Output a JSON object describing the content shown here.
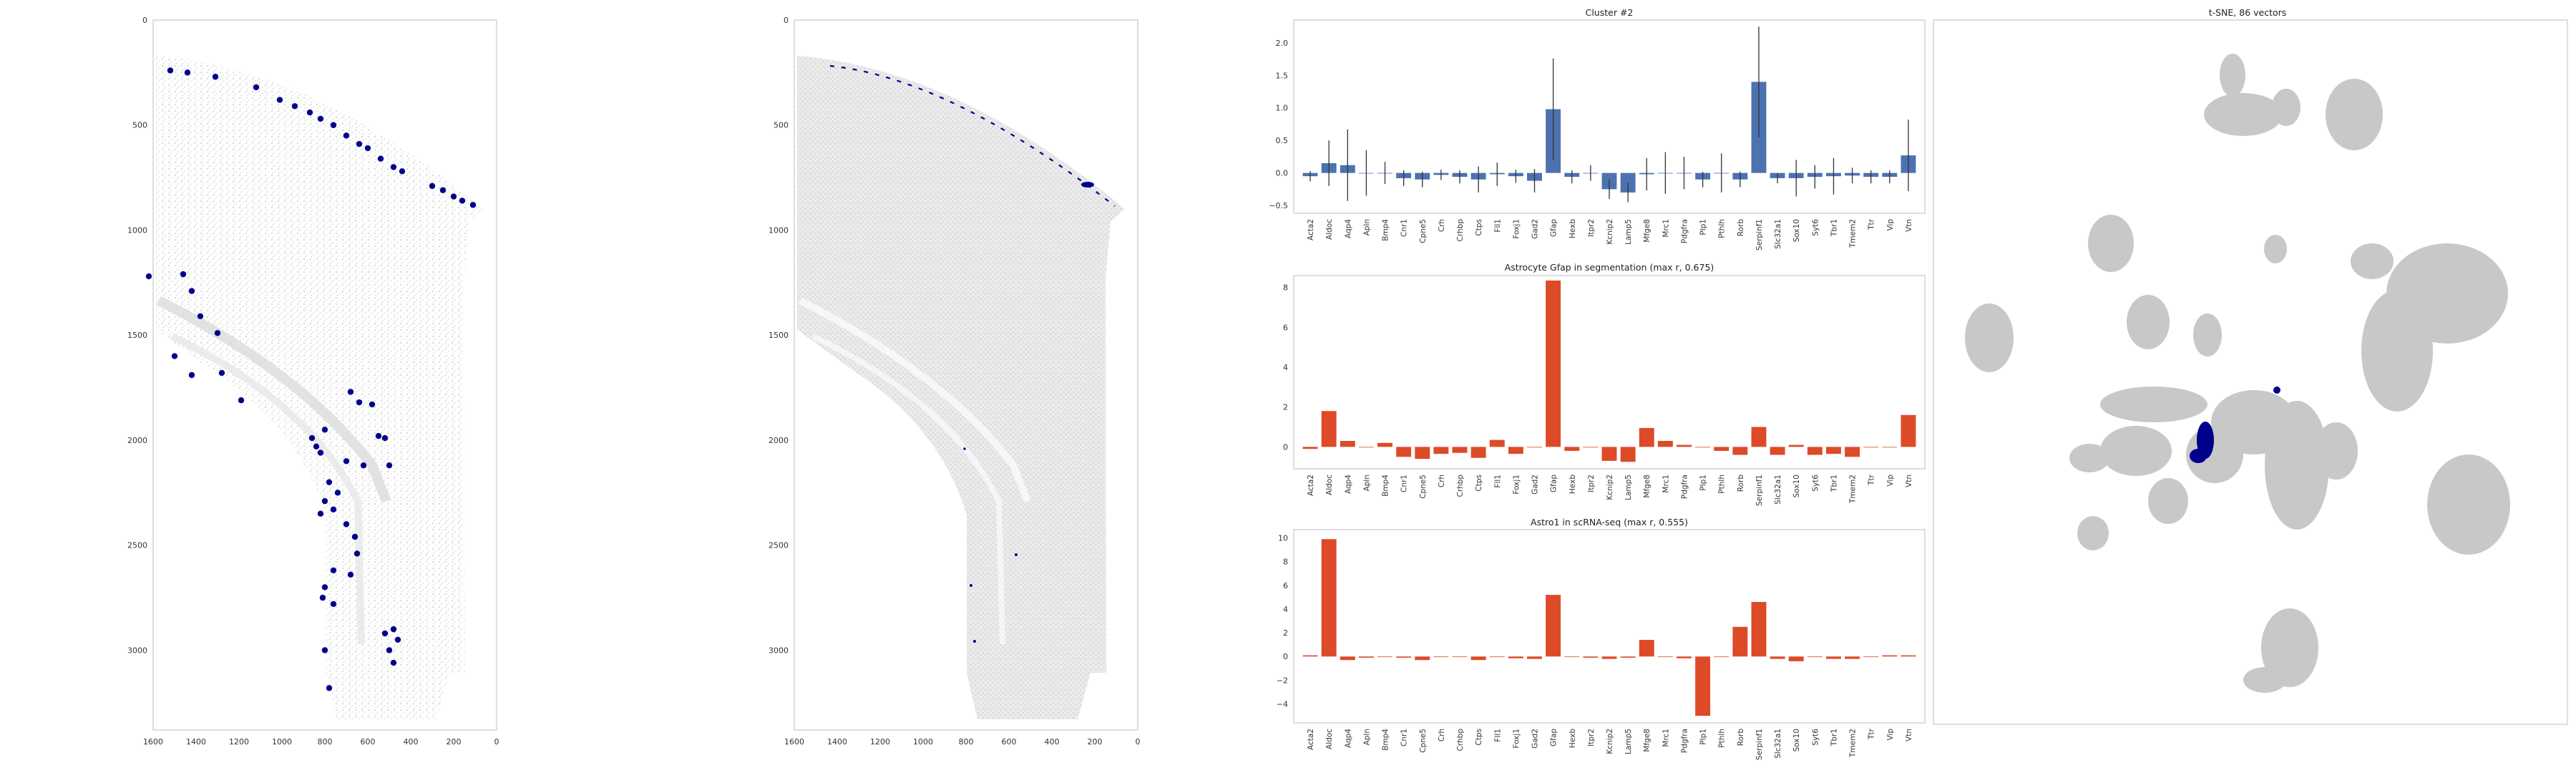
{
  "colors": {
    "marker": "#00008b",
    "bar_cluster": "#4c72b0",
    "bar_red": "#dd4a28",
    "tsne_gray": "#c8c8c8",
    "tissue_gray": "#d4d4d4",
    "frame": "#c8c8c8"
  },
  "chart_data": [
    {
      "id": "spatial-left",
      "type": "scatter",
      "description_level": "spatial tissue map with highlighted cells",
      "xlim": [
        1600,
        0
      ],
      "ylim": [
        3380,
        0
      ],
      "xticks": [
        "1600",
        "1400",
        "1200",
        "1000",
        "800",
        "600",
        "400",
        "200",
        "0"
      ],
      "yticks": [
        "0",
        "500",
        "1000",
        "1500",
        "2000",
        "2500",
        "3000"
      ],
      "x": [
        1520,
        1440,
        1310,
        1120,
        1010,
        940,
        870,
        820,
        760,
        700,
        640,
        600,
        540,
        480,
        440,
        300,
        250,
        200,
        160,
        110,
        1620,
        1460,
        1420,
        1380,
        1300,
        1280,
        1420,
        1500,
        1190,
        680,
        640,
        580,
        800,
        860,
        840,
        820,
        700,
        620,
        550,
        520,
        500,
        780,
        740,
        800,
        820,
        760,
        700,
        660,
        650,
        680,
        760,
        800,
        810,
        760,
        520,
        480,
        500,
        480,
        460,
        800,
        780
      ],
      "y": [
        240,
        250,
        270,
        320,
        380,
        410,
        440,
        470,
        500,
        550,
        590,
        610,
        660,
        700,
        720,
        790,
        810,
        840,
        860,
        880,
        1220,
        1210,
        1290,
        1410,
        1490,
        1680,
        1690,
        1600,
        1810,
        1770,
        1820,
        1830,
        1950,
        1990,
        2030,
        2060,
        2100,
        2120,
        1980,
        1990,
        2120,
        2200,
        2250,
        2290,
        2350,
        2330,
        2400,
        2460,
        2540,
        2640,
        2620,
        2700,
        2750,
        2780,
        2920,
        2900,
        3000,
        3060,
        2950,
        3000,
        3180
      ]
    },
    {
      "id": "spatial-middle",
      "type": "scatter",
      "description_level": "segmentation map with highlighted cells",
      "xlim": [
        1600,
        0
      ],
      "ylim": [
        3380,
        0
      ],
      "xticks": [
        "1600",
        "1400",
        "1200",
        "1000",
        "800",
        "600",
        "400",
        "200",
        "0"
      ],
      "yticks": [
        "0",
        "500",
        "1000",
        "1500",
        "2000",
        "2500",
        "3000"
      ]
    },
    {
      "id": "cluster-bar",
      "type": "bar",
      "title": "Cluster #2",
      "categories": [
        "Acta2",
        "Aldoc",
        "Aqp4",
        "Apln",
        "Bmp4",
        "Cnr1",
        "Cpne5",
        "Crh",
        "Crhbp",
        "Ctps",
        "Fll1",
        "Foxj1",
        "Gad2",
        "Gfap",
        "Hexb",
        "Itpr2",
        "Kcnip2",
        "Lamp5",
        "Mfge8",
        "Mrc1",
        "Pdgfra",
        "Plp1",
        "Pthlh",
        "Rorb",
        "Serpinf1",
        "Slc32a1",
        "Sox10",
        "Syt6",
        "Tbr1",
        "Tmem2",
        "Ttr",
        "Vip",
        "Vtn"
      ],
      "values": [
        -0.05,
        0.15,
        0.12,
        0.0,
        0.0,
        -0.08,
        -0.1,
        -0.03,
        -0.06,
        -0.1,
        -0.02,
        -0.05,
        -0.12,
        0.98,
        -0.06,
        0.0,
        -0.25,
        -0.3,
        -0.02,
        0.0,
        0.0,
        -0.1,
        0.0,
        -0.1,
        1.4,
        -0.08,
        -0.08,
        -0.06,
        -0.05,
        -0.04,
        -0.06,
        -0.06,
        0.27
      ],
      "errors": [
        0.08,
        0.35,
        0.55,
        0.35,
        0.17,
        0.12,
        0.12,
        0.08,
        0.1,
        0.2,
        0.18,
        0.1,
        0.18,
        0.78,
        0.1,
        0.12,
        0.15,
        0.15,
        0.25,
        0.32,
        0.25,
        0.12,
        0.3,
        0.12,
        0.85,
        0.08,
        0.28,
        0.18,
        0.28,
        0.12,
        0.1,
        0.1,
        0.55
      ],
      "ylim": [
        -0.62,
        2.35
      ],
      "yticks": [
        "−0.5",
        "0.0",
        "0.5",
        "1.0",
        "1.5",
        "2.0"
      ]
    },
    {
      "id": "astro-gfap-bar",
      "type": "bar",
      "title": "Astrocyte Gfap in segmentation (max r, 0.675)",
      "categories": [
        "Acta2",
        "Aldoc",
        "Aqp4",
        "Apln",
        "Bmp4",
        "Cnr1",
        "Cpne5",
        "Crh",
        "Crhbp",
        "Ctps",
        "Fll1",
        "Foxj1",
        "Gad2",
        "Gfap",
        "Hexb",
        "Itpr2",
        "Kcnip2",
        "Lamp5",
        "Mfge8",
        "Mrc1",
        "Pdgfra",
        "Plp1",
        "Pthlh",
        "Rorb",
        "Serpinf1",
        "Slc32a1",
        "Sox10",
        "Syt6",
        "Tbr1",
        "Tmem2",
        "Ttr",
        "Vip",
        "Vtn"
      ],
      "values": [
        -0.1,
        1.8,
        0.3,
        0.0,
        0.2,
        -0.5,
        -0.6,
        -0.35,
        -0.3,
        -0.55,
        0.35,
        -0.35,
        0.0,
        8.35,
        -0.2,
        0.0,
        -0.7,
        -0.75,
        0.95,
        0.3,
        0.1,
        0.0,
        -0.2,
        -0.4,
        1.0,
        -0.4,
        0.1,
        -0.4,
        -0.35,
        -0.5,
        0.0,
        0.0,
        1.6
      ],
      "ylim": [
        -1.1,
        8.6
      ],
      "yticks": [
        "0",
        "2",
        "4",
        "6",
        "8"
      ]
    },
    {
      "id": "astro1-bar",
      "type": "bar",
      "title": "Astro1 in scRNA-seq (max r, 0.555)",
      "categories": [
        "Acta2",
        "Aldoc",
        "Aqp4",
        "Apln",
        "Bmp4",
        "Cnr1",
        "Cpne5",
        "Crh",
        "Crhbp",
        "Ctps",
        "Fll1",
        "Foxj1",
        "Gad2",
        "Gfap",
        "Hexb",
        "Itpr2",
        "Kcnip2",
        "Lamp5",
        "Mfge8",
        "Mrc1",
        "Pdgfra",
        "Plp1",
        "Pthlh",
        "Rorb",
        "Serpinf1",
        "Slc32a1",
        "Sox10",
        "Syt6",
        "Tbr1",
        "Tmem2",
        "Ttr",
        "Vip",
        "Vtn"
      ],
      "values": [
        0.1,
        9.9,
        -0.3,
        -0.1,
        0.0,
        -0.1,
        -0.3,
        0.0,
        0.0,
        -0.3,
        0.0,
        -0.15,
        -0.2,
        5.2,
        0.0,
        -0.1,
        -0.2,
        -0.1,
        1.4,
        0.0,
        -0.15,
        -5.0,
        0.0,
        2.5,
        4.6,
        -0.2,
        -0.4,
        0.0,
        -0.2,
        -0.2,
        0.0,
        0.1,
        0.1
      ],
      "ylim": [
        -5.6,
        10.7
      ],
      "yticks": [
        "−4",
        "−2",
        "0",
        "2",
        "4",
        "6",
        "8",
        "10"
      ]
    },
    {
      "id": "tsne-scatter",
      "type": "scatter",
      "title": "t-SNE, 86 vectors"
    }
  ]
}
